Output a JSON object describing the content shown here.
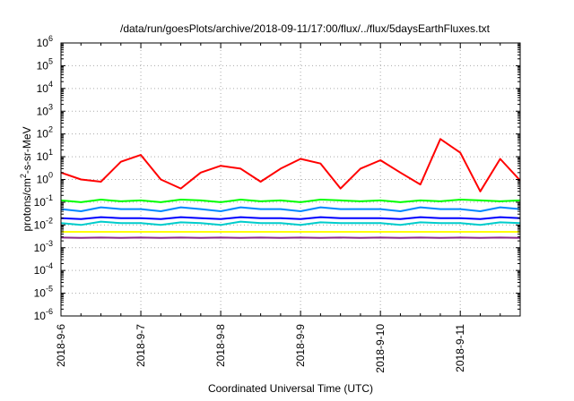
{
  "chart_data": {
    "type": "line",
    "title": "/data/run/goesPlots/archive/2018-09-11/17:00/flux/../flux/5daysEarthFluxes.txt",
    "xlabel": "Coordinated Universal Time (UTC)",
    "ylabel_parts": [
      "protons/cm",
      "2",
      "-s-sr-MeV"
    ],
    "yscale": "log",
    "ylim": [
      1e-06,
      1000000.0
    ],
    "xlim": [
      "2018-9-6",
      "2018-9-11 18:00"
    ],
    "grid": true,
    "y_ticks": [
      {
        "base": "10",
        "exp": "-6",
        "value": 1e-06
      },
      {
        "base": "10",
        "exp": "-5",
        "value": 1e-05
      },
      {
        "base": "10",
        "exp": "-4",
        "value": 0.0001
      },
      {
        "base": "10",
        "exp": "-3",
        "value": 0.001
      },
      {
        "base": "10",
        "exp": "-2",
        "value": 0.01
      },
      {
        "base": "10",
        "exp": "-1",
        "value": 0.1
      },
      {
        "base": "10",
        "exp": "0",
        "value": 1
      },
      {
        "base": "10",
        "exp": "1",
        "value": 10
      },
      {
        "base": "10",
        "exp": "2",
        "value": 100
      },
      {
        "base": "10",
        "exp": "3",
        "value": 1000
      },
      {
        "base": "10",
        "exp": "4",
        "value": 10000
      },
      {
        "base": "10",
        "exp": "5",
        "value": 100000
      },
      {
        "base": "10",
        "exp": "6",
        "value": 1000000
      }
    ],
    "x_ticks": [
      "2018-9-6",
      "2018-9-7",
      "2018-9-8",
      "2018-9-9",
      "2018-9-10",
      "2018-9-11"
    ],
    "x": [
      "2018-9-6 00:00",
      "2018-9-6 06:00",
      "2018-9-6 12:00",
      "2018-9-6 18:00",
      "2018-9-7 00:00",
      "2018-9-7 06:00",
      "2018-9-7 12:00",
      "2018-9-7 18:00",
      "2018-9-8 00:00",
      "2018-9-8 06:00",
      "2018-9-8 12:00",
      "2018-9-8 18:00",
      "2018-9-9 00:00",
      "2018-9-9 06:00",
      "2018-9-9 12:00",
      "2018-9-9 18:00",
      "2018-9-10 00:00",
      "2018-9-10 06:00",
      "2018-9-10 12:00",
      "2018-9-10 18:00",
      "2018-9-11 00:00",
      "2018-9-11 06:00",
      "2018-9-11 12:00",
      "2018-9-11 18:00"
    ],
    "series": [
      {
        "color": "#ff0000",
        "values": [
          2.0,
          1.0,
          0.8,
          6.0,
          12.0,
          1.0,
          0.4,
          2.0,
          4.0,
          3.0,
          0.8,
          3.0,
          8.0,
          5.0,
          0.4,
          3.0,
          7.0,
          2.0,
          0.6,
          60.0,
          15.0,
          0.3,
          8.0,
          0.9
        ]
      },
      {
        "color": "#00ff00",
        "values": [
          0.12,
          0.1,
          0.13,
          0.11,
          0.12,
          0.1,
          0.13,
          0.12,
          0.1,
          0.13,
          0.11,
          0.12,
          0.1,
          0.13,
          0.12,
          0.11,
          0.12,
          0.1,
          0.12,
          0.11,
          0.13,
          0.12,
          0.11,
          0.12
        ]
      },
      {
        "color": "#0088ff",
        "values": [
          0.05,
          0.04,
          0.06,
          0.05,
          0.05,
          0.04,
          0.06,
          0.05,
          0.04,
          0.06,
          0.05,
          0.05,
          0.04,
          0.06,
          0.05,
          0.05,
          0.05,
          0.04,
          0.06,
          0.05,
          0.05,
          0.04,
          0.06,
          0.05
        ]
      },
      {
        "color": "#00cccc",
        "values": [
          0.012,
          0.01,
          0.014,
          0.012,
          0.012,
          0.01,
          0.013,
          0.012,
          0.01,
          0.014,
          0.012,
          0.012,
          0.01,
          0.013,
          0.012,
          0.012,
          0.012,
          0.01,
          0.013,
          0.012,
          0.012,
          0.01,
          0.013,
          0.012
        ]
      },
      {
        "color": "#0000ff",
        "values": [
          0.02,
          0.018,
          0.022,
          0.02,
          0.02,
          0.018,
          0.022,
          0.02,
          0.018,
          0.022,
          0.02,
          0.02,
          0.018,
          0.022,
          0.02,
          0.02,
          0.02,
          0.018,
          0.022,
          0.02,
          0.02,
          0.018,
          0.022,
          0.02
        ]
      },
      {
        "color": "#ffff00",
        "values": [
          0.005,
          0.005,
          0.005,
          0.005,
          0.005,
          0.005,
          0.005,
          0.005,
          0.005,
          0.005,
          0.005,
          0.005,
          0.005,
          0.005,
          0.005,
          0.005,
          0.005,
          0.005,
          0.005,
          0.005,
          0.005,
          0.005,
          0.005,
          0.005
        ]
      },
      {
        "color": "#8b2a8b",
        "values": [
          0.0028,
          0.0027,
          0.0028,
          0.0027,
          0.0028,
          0.0027,
          0.0028,
          0.0027,
          0.0028,
          0.0027,
          0.0028,
          0.0027,
          0.0028,
          0.0027,
          0.0028,
          0.0027,
          0.0028,
          0.0027,
          0.0028,
          0.0027,
          0.0028,
          0.0027,
          0.0028,
          0.0027
        ]
      }
    ]
  }
}
